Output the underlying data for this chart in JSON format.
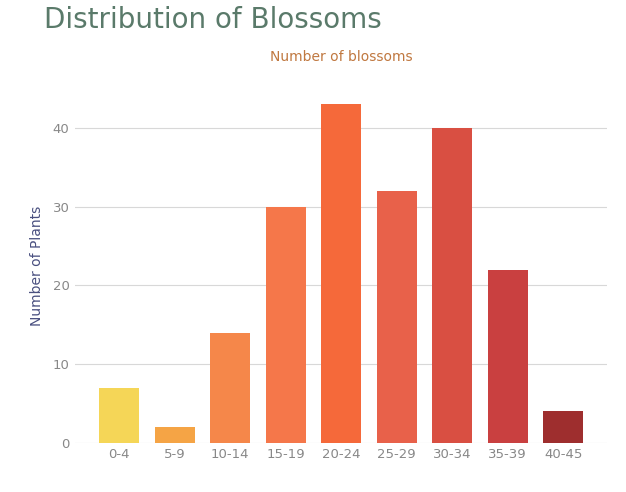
{
  "title": "Distribution of Blossoms",
  "title_color": "#5a7a6a",
  "xlabel": "Number of blossoms",
  "xlabel_color": "#c07840",
  "ylabel": "Number of Plants",
  "ylabel_color": "#4a5080",
  "categories": [
    "0-4",
    "5-9",
    "10-14",
    "15-19",
    "20-24",
    "25-29",
    "30-34",
    "35-39",
    "40-45"
  ],
  "values": [
    7,
    2,
    14,
    30,
    43,
    32,
    40,
    22,
    4
  ],
  "bar_colors": [
    "#f5d657",
    "#f5a445",
    "#f5874a",
    "#f5774a",
    "#f5693a",
    "#e8614a",
    "#d94f42",
    "#c94040",
    "#9e2e2e"
  ],
  "ylim": [
    0,
    45
  ],
  "yticks": [
    0,
    10,
    20,
    30,
    40
  ],
  "background_color": "#ffffff",
  "plot_bg_color": "#ffffff",
  "grid_color": "#d8d8d8",
  "title_fontsize": 20,
  "xlabel_fontsize": 10,
  "ylabel_fontsize": 10,
  "tick_fontsize": 9.5,
  "tick_color": "#888888",
  "bar_width": 0.72
}
